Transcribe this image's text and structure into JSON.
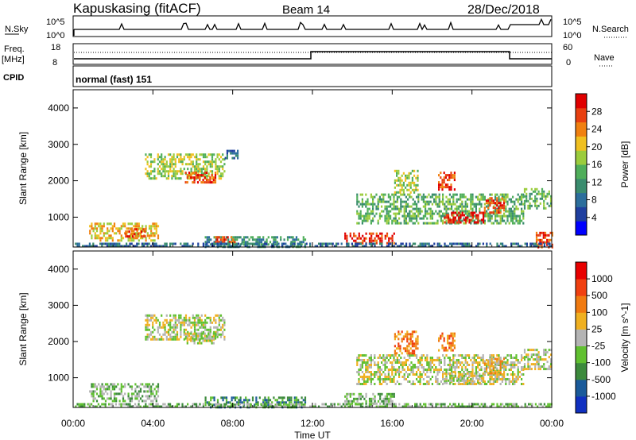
{
  "header": {
    "station": "Kapuskasing (fitACF)",
    "beam": "Beam 14",
    "date": "28/Dec/2018"
  },
  "top_panels": {
    "nsky_label": "N.Sky",
    "nsky_ticks": [
      "10^5",
      "10^0"
    ],
    "nsearch_label": "N.Search",
    "nsearch_ticks": [
      "10^5",
      "10^0"
    ],
    "freq_label_1": "Freq.",
    "freq_label_2": "[MHz]",
    "freq_ticks": [
      "18",
      "8"
    ],
    "nave_label": "Nave",
    "nave_ticks": [
      "60",
      "0"
    ],
    "cpid_label": "CPID",
    "cpid_value": "normal (fast) 151"
  },
  "colors": {
    "power": [
      "#0000ff",
      "#1f3f9f",
      "#2c6e9c",
      "#3a8c6e",
      "#4fae5a",
      "#9bcc3c",
      "#f0c020",
      "#f08010",
      "#e84010",
      "#e00000"
    ],
    "velocity": [
      "#1030c0",
      "#1a5a9a",
      "#3c8a3c",
      "#60c030",
      "#b4b4b4",
      "#f0b020",
      "#f07a10",
      "#f04010",
      "#e80000"
    ]
  },
  "chart_data": [
    {
      "type": "heatmap",
      "title": "Power",
      "xlabel": "Time UT",
      "ylabel": "Slant Range [km]",
      "colorbar_label": "Power [dB]",
      "colorbar_ticks": [
        "28",
        "24",
        "20",
        "16",
        "12",
        "8",
        "4"
      ],
      "x_ticks": [
        "00:00",
        "04:00",
        "08:00",
        "12:00",
        "16:00",
        "20:00",
        "00:00"
      ],
      "y_ticks": [
        "4000",
        "3000",
        "2000",
        "1000"
      ],
      "xlim_hours": [
        0,
        24
      ],
      "ylim_km": [
        180,
        4500
      ],
      "regions": [
        {
          "t0": 3.6,
          "t1": 7.6,
          "r0": 2050,
          "r1": 2750,
          "level": 5
        },
        {
          "t0": 5.6,
          "t1": 7.1,
          "r0": 1950,
          "r1": 2250,
          "level": 8
        },
        {
          "t0": 7.6,
          "t1": 8.3,
          "r0": 2650,
          "r1": 2850,
          "level": 2
        },
        {
          "t0": 0.8,
          "t1": 4.3,
          "r0": 380,
          "r1": 850,
          "level": 6
        },
        {
          "t0": 2.6,
          "t1": 3.6,
          "r0": 480,
          "r1": 700,
          "level": 8
        },
        {
          "t0": 6.6,
          "t1": 11.6,
          "r0": 190,
          "r1": 480,
          "level": 3
        },
        {
          "t0": 7.1,
          "t1": 8.1,
          "r0": 290,
          "r1": 480,
          "level": 8
        },
        {
          "t0": 13.6,
          "t1": 16.1,
          "r0": 290,
          "r1": 580,
          "level": 8
        },
        {
          "t0": 14.2,
          "t1": 22.6,
          "r0": 800,
          "r1": 1650,
          "level": 4
        },
        {
          "t0": 16.1,
          "t1": 17.3,
          "r0": 1650,
          "r1": 2300,
          "level": 5
        },
        {
          "t0": 18.3,
          "t1": 19.1,
          "r0": 1750,
          "r1": 2250,
          "level": 8
        },
        {
          "t0": 18.6,
          "t1": 20.6,
          "r0": 850,
          "r1": 1150,
          "level": 9
        },
        {
          "t0": 20.6,
          "t1": 21.6,
          "r0": 1150,
          "r1": 1550,
          "level": 8
        },
        {
          "t0": 22.6,
          "t1": 24.0,
          "r0": 1250,
          "r1": 1800,
          "level": 4
        },
        {
          "t0": 23.2,
          "t1": 24.0,
          "r0": 190,
          "r1": 600,
          "level": 8
        },
        {
          "t0": 0.0,
          "t1": 24.0,
          "r0": 185,
          "r1": 300,
          "level": 2
        }
      ]
    },
    {
      "type": "heatmap",
      "title": "Velocity",
      "xlabel": "Time UT",
      "ylabel": "Slant Range [km]",
      "colorbar_label": "Velocity [m s^-1]",
      "colorbar_ticks": [
        "1000",
        "500",
        "100",
        "25",
        "-25",
        "-100",
        "-500",
        "-1000"
      ],
      "x_ticks": [
        "00:00",
        "04:00",
        "08:00",
        "12:00",
        "16:00",
        "20:00",
        "00:00"
      ],
      "y_ticks": [
        "4000",
        "3000",
        "2000",
        "1000"
      ],
      "xlim_hours": [
        0,
        24
      ],
      "ylim_km": [
        180,
        4500
      ],
      "regions": [
        {
          "t0": 3.6,
          "t1": 7.6,
          "r0": 2050,
          "r1": 2750,
          "level": 4
        },
        {
          "t0": 5.6,
          "t1": 7.1,
          "r0": 1950,
          "r1": 2250,
          "level": 4
        },
        {
          "t0": 0.8,
          "t1": 4.3,
          "r0": 380,
          "r1": 850,
          "level": 3
        },
        {
          "t0": 6.6,
          "t1": 11.6,
          "r0": 190,
          "r1": 480,
          "level": 2
        },
        {
          "t0": 13.6,
          "t1": 16.1,
          "r0": 290,
          "r1": 580,
          "level": 3
        },
        {
          "t0": 14.2,
          "t1": 22.6,
          "r0": 800,
          "r1": 1650,
          "level": 4
        },
        {
          "t0": 16.1,
          "t1": 17.3,
          "r0": 1650,
          "r1": 2300,
          "level": 6
        },
        {
          "t0": 18.3,
          "t1": 19.1,
          "r0": 1750,
          "r1": 2250,
          "level": 6
        },
        {
          "t0": 18.6,
          "t1": 20.6,
          "r0": 850,
          "r1": 1150,
          "level": 4
        },
        {
          "t0": 20.6,
          "t1": 21.6,
          "r0": 1150,
          "r1": 1550,
          "level": 5
        },
        {
          "t0": 22.6,
          "t1": 24.0,
          "r0": 1250,
          "r1": 1800,
          "level": 4
        },
        {
          "t0": 0.0,
          "t1": 24.0,
          "r0": 185,
          "r1": 300,
          "level": 3
        }
      ]
    }
  ]
}
